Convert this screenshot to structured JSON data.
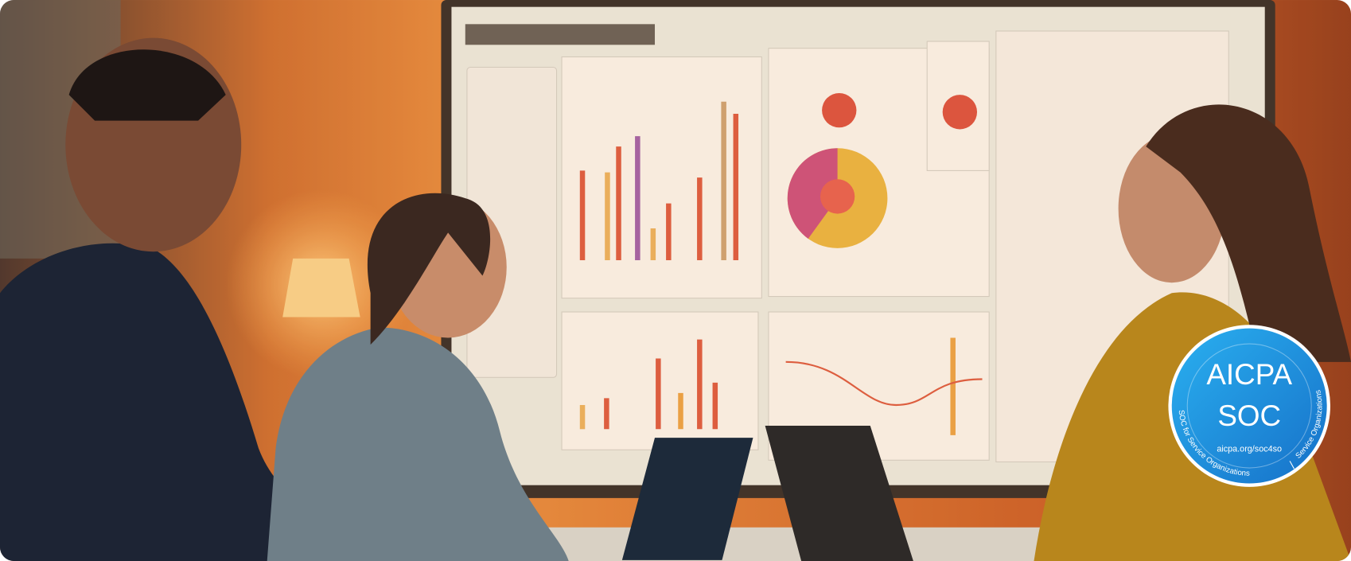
{
  "badge": {
    "title": "AICPA",
    "subtitle": "SOC",
    "url": "aicpa.org/soc4so",
    "ring_text_left": "SOC for Service Organizations",
    "ring_text_right": "Service Organizations"
  }
}
